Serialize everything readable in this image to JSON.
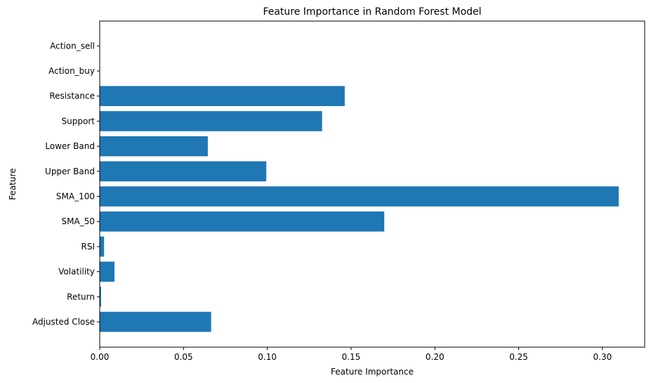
{
  "chart_data": {
    "type": "bar",
    "orientation": "horizontal",
    "title": "Feature Importance in Random Forest Model",
    "xlabel": "Feature Importance",
    "ylabel": "Feature",
    "categories": [
      "Adjusted Close",
      "Return",
      "Volatility",
      "RSI",
      "SMA_50",
      "SMA_100",
      "Upper Band",
      "Lower Band",
      "Support",
      "Resistance",
      "Action_buy",
      "Action_sell"
    ],
    "values": [
      0.0665,
      0.0008,
      0.0088,
      0.0026,
      0.1698,
      0.3097,
      0.0994,
      0.0645,
      0.1327,
      0.1462,
      0.0,
      0.0
    ],
    "xlim": [
      0,
      0.3252
    ],
    "xticks": [
      0.0,
      0.05,
      0.1,
      0.15,
      0.2,
      0.25,
      0.3
    ],
    "xtick_labels": [
      "0.00",
      "0.05",
      "0.10",
      "0.15",
      "0.20",
      "0.25",
      "0.30"
    ],
    "bar_color": "#1f77b4",
    "grid": false,
    "legend": "none"
  }
}
